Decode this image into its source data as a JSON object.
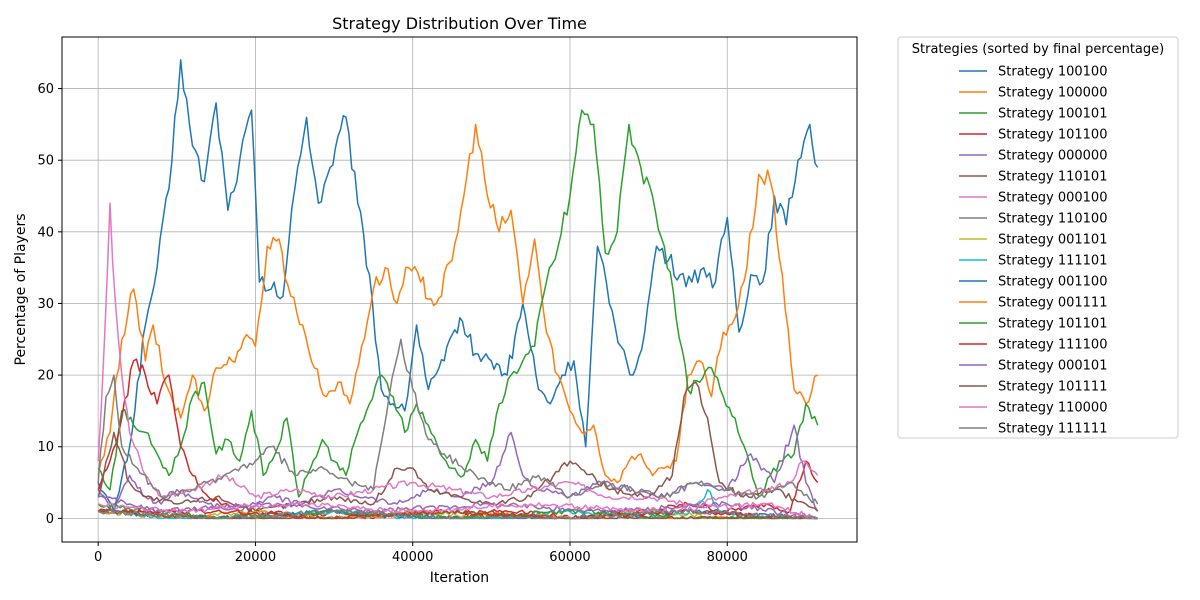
{
  "chart_data": {
    "type": "line",
    "title": "Strategy Distribution Over Time",
    "xlabel": "Iteration",
    "ylabel": "Percentage of Players",
    "xlim": [
      -4600,
      96500
    ],
    "ylim": [
      -3.3,
      67.2
    ],
    "xticks": [
      0,
      20000,
      40000,
      60000,
      80000
    ],
    "xtick_labels": [
      "0",
      "20000",
      "40000",
      "60000",
      "80000"
    ],
    "yticks": [
      0,
      10,
      20,
      30,
      40,
      50,
      60
    ],
    "ytick_labels": [
      "0",
      "10",
      "20",
      "30",
      "40",
      "50",
      "60"
    ],
    "grid": true,
    "legend": {
      "title": "Strategies (sorted by final percentage)",
      "placement": "outside-right"
    },
    "series": [
      {
        "name": "Strategy 100100",
        "color": "#1f77b4",
        "x": [
          0,
          2000,
          4000,
          6000,
          7500,
          9000,
          10500,
          12000,
          13500,
          15000,
          16500,
          18000,
          19500,
          20500,
          22000,
          23500,
          25000,
          26500,
          28000,
          29500,
          31500,
          33000,
          34500,
          36000,
          37500,
          39000,
          40500,
          42000,
          44000,
          46000,
          48000,
          50000,
          52000,
          54000,
          56000,
          57500,
          59000,
          60500,
          62000,
          63500,
          65000,
          66500,
          68000,
          69500,
          71000,
          72500,
          74000,
          75500,
          77000,
          78500,
          80000,
          81500,
          83000,
          84500,
          86000,
          87500,
          89000,
          90500,
          91500
        ],
        "y": [
          5,
          1,
          10,
          27,
          35,
          46,
          64,
          52,
          47,
          58,
          43,
          50,
          57,
          33,
          32,
          31,
          46,
          56,
          44,
          49,
          56,
          44,
          34,
          18,
          16,
          15,
          27,
          18,
          22,
          28,
          23,
          22,
          20,
          30,
          18,
          16,
          20,
          22,
          10,
          38,
          30,
          24,
          20,
          26,
          38,
          36,
          34,
          33,
          35,
          33,
          42,
          26,
          34,
          33,
          45,
          41,
          50,
          55,
          49
        ]
      },
      {
        "name": "Strategy 100000",
        "color": "#ff7f0e",
        "x": [
          0,
          1500,
          3000,
          4500,
          6000,
          7000,
          8500,
          10500,
          12000,
          13500,
          15000,
          17000,
          18500,
          20000,
          21500,
          23000,
          24500,
          26000,
          27500,
          29000,
          30500,
          32000,
          33500,
          35000,
          36500,
          38000,
          39500,
          41000,
          43000,
          45000,
          46500,
          48000,
          49500,
          51000,
          52500,
          54000,
          55500,
          57000,
          58500,
          60000,
          61500,
          63000,
          64500,
          66000,
          67500,
          69000,
          70500,
          72000,
          73500,
          75000,
          76500,
          78000,
          79500,
          81000,
          82500,
          84000,
          85500,
          87000,
          88500,
          90000,
          91500
        ],
        "y": [
          6,
          12,
          25,
          32,
          22,
          27,
          19,
          14,
          20,
          15,
          21,
          22,
          25,
          24,
          38,
          39,
          31,
          27,
          21,
          17,
          19,
          16,
          24,
          32,
          35,
          30,
          35,
          33,
          30,
          36,
          45,
          55,
          45,
          40,
          43,
          30,
          39,
          26,
          20,
          15,
          12,
          13,
          6,
          5,
          8,
          9,
          6,
          7,
          8,
          20,
          22,
          17,
          26,
          28,
          35,
          48,
          47,
          34,
          18,
          16,
          20
        ]
      },
      {
        "name": "Strategy 100101",
        "color": "#2ca02c",
        "x": [
          0,
          1500,
          3000,
          4500,
          6000,
          7500,
          9000,
          10500,
          12000,
          13500,
          15000,
          16500,
          18000,
          19500,
          21000,
          22500,
          24000,
          25500,
          27000,
          28500,
          30000,
          31500,
          33000,
          34500,
          36000,
          37500,
          39000,
          40500,
          42000,
          43500,
          45000,
          46500,
          48000,
          49500,
          51000,
          52500,
          54000,
          55500,
          57000,
          58500,
          60000,
          61500,
          63000,
          64500,
          66000,
          67500,
          69000,
          70500,
          72000,
          73500,
          75000,
          76500,
          78000,
          79500,
          81000,
          82500,
          84000,
          85500,
          87000,
          88500,
          90000,
          91500
        ],
        "y": [
          7,
          4,
          15,
          13,
          12,
          9,
          6,
          10,
          17,
          19,
          9,
          11,
          8,
          15,
          6,
          9,
          14,
          3,
          7,
          11,
          8,
          6,
          12,
          16,
          20,
          17,
          12,
          16,
          13,
          9,
          7,
          6,
          11,
          8,
          16,
          20,
          22,
          24,
          33,
          38,
          45,
          57,
          55,
          37,
          40,
          55,
          49,
          45,
          38,
          28,
          18,
          19,
          21,
          17,
          14,
          9,
          3,
          6,
          8,
          9,
          16,
          13
        ]
      },
      {
        "name": "Strategy 101100",
        "color": "#d62728",
        "x": [
          0,
          1500,
          3000,
          4500,
          6000,
          7500,
          9000,
          10500,
          12000,
          14000,
          16000,
          18000,
          20000,
          23000,
          26000,
          30000,
          35000,
          40000,
          45000,
          50000,
          55000,
          60000,
          65000,
          70000,
          75000,
          80000,
          85000,
          88000,
          90000,
          91500
        ],
        "y": [
          4,
          8,
          14,
          22,
          20,
          16,
          20,
          10,
          6,
          3,
          2,
          1,
          1,
          1,
          0,
          1,
          0,
          1,
          0,
          1,
          1,
          0,
          1,
          1,
          2,
          1,
          2,
          1,
          8,
          5
        ]
      },
      {
        "name": "Strategy 000000",
        "color": "#9467bd",
        "x": [
          0,
          2000,
          4000,
          6000,
          8000,
          10000,
          14000,
          18000,
          22000,
          26000,
          30000,
          34000,
          38000,
          42000,
          46000,
          50000,
          52500,
          54000,
          56000,
          60000,
          64000,
          68000,
          72000,
          76000,
          80000,
          83000,
          86000,
          88500,
          90000,
          91500
        ],
        "y": [
          4,
          1,
          6,
          3,
          2,
          4,
          2,
          1,
          3,
          2,
          4,
          3,
          2,
          4,
          3,
          5,
          12,
          6,
          4,
          3,
          5,
          4,
          3,
          5,
          4,
          9,
          5,
          13,
          5,
          1
        ]
      },
      {
        "name": "Strategy 110101",
        "color": "#8c564b",
        "x": [
          0,
          2000,
          4000,
          6000,
          10000,
          15000,
          20000,
          25000,
          30000,
          35000,
          38000,
          40000,
          42000,
          46000,
          50000,
          55000,
          60000,
          65000,
          70000,
          73000,
          74500,
          76000,
          77500,
          79000,
          82000,
          86000,
          90000,
          91500
        ],
        "y": [
          3,
          12,
          5,
          3,
          2,
          3,
          1,
          2,
          3,
          2,
          7,
          7,
          4,
          3,
          2,
          3,
          8,
          4,
          3,
          6,
          17,
          19,
          14,
          5,
          3,
          4,
          2,
          1
        ]
      },
      {
        "name": "Strategy 000100",
        "color": "#e377c2",
        "x": [
          0,
          800,
          1500,
          2200,
          3000,
          4000,
          6000,
          8000,
          12000,
          16000,
          20000,
          25000,
          30000,
          35000,
          40000,
          45000,
          50000,
          55000,
          60000,
          65000,
          70000,
          75000,
          80000,
          85000,
          88000,
          89500,
          91500
        ],
        "y": [
          8,
          25,
          44,
          30,
          20,
          12,
          6,
          3,
          4,
          6,
          3,
          4,
          3,
          4,
          5,
          4,
          3,
          4,
          5,
          3,
          3,
          2,
          3,
          4,
          5,
          8,
          6
        ]
      },
      {
        "name": "Strategy 110100",
        "color": "#7f7f7f",
        "x": [
          0,
          1000,
          2000,
          3000,
          5000,
          8000,
          12000,
          16000,
          20000,
          22000,
          25000,
          28000,
          32000,
          35000,
          37000,
          38500,
          40000,
          42000,
          44000,
          48000,
          52000,
          56000,
          60000,
          64000,
          68000,
          72000,
          76000,
          80000,
          84000,
          88000,
          91500
        ],
        "y": [
          5,
          17,
          20,
          10,
          7,
          3,
          4,
          6,
          8,
          10,
          6,
          7,
          5,
          4,
          17,
          25,
          18,
          11,
          9,
          6,
          4,
          6,
          3,
          5,
          4,
          3,
          5,
          4,
          3,
          5,
          2
        ]
      },
      {
        "name": "Strategy 001101",
        "color": "#bcbd22",
        "x": [
          0,
          10000,
          20000,
          30000,
          40000,
          50000,
          60000,
          70000,
          80000,
          91500
        ],
        "y": [
          1,
          0,
          1,
          0,
          1,
          0,
          0,
          1,
          0,
          0
        ]
      },
      {
        "name": "Strategy 111101",
        "color": "#17becf",
        "x": [
          0,
          10000,
          20000,
          30000,
          40000,
          50000,
          60000,
          70000,
          76000,
          77500,
          79000,
          85000,
          91500
        ],
        "y": [
          1,
          0,
          0,
          1,
          0,
          0,
          1,
          0,
          1,
          4,
          1,
          0,
          0
        ]
      },
      {
        "name": "Strategy 001100",
        "color": "#1f77b4",
        "x": [
          0,
          15000,
          30000,
          45000,
          60000,
          75000,
          91500
        ],
        "y": [
          1,
          0,
          1,
          0,
          0,
          1,
          0
        ]
      },
      {
        "name": "Strategy 001111",
        "color": "#ff7f0e",
        "x": [
          0,
          15000,
          30000,
          45000,
          60000,
          75000,
          91500
        ],
        "y": [
          1,
          0,
          0,
          1,
          0,
          0,
          0
        ]
      },
      {
        "name": "Strategy 101101",
        "color": "#2ca02c",
        "x": [
          0,
          15000,
          30000,
          45000,
          60000,
          75000,
          91500
        ],
        "y": [
          2,
          0,
          1,
          0,
          1,
          0,
          0
        ]
      },
      {
        "name": "Strategy 111100",
        "color": "#d62728",
        "x": [
          0,
          15000,
          30000,
          45000,
          60000,
          75000,
          91500
        ],
        "y": [
          1,
          1,
          0,
          1,
          0,
          1,
          0
        ]
      },
      {
        "name": "Strategy 000101",
        "color": "#9467bd",
        "x": [
          0,
          4000,
          8000,
          20000,
          35000,
          50000,
          65000,
          80000,
          91500
        ],
        "y": [
          3,
          2,
          1,
          2,
          1,
          2,
          1,
          2,
          0
        ]
      },
      {
        "name": "Strategy 101111",
        "color": "#8c564b",
        "x": [
          0,
          15000,
          30000,
          45000,
          60000,
          75000,
          91500
        ],
        "y": [
          1,
          0,
          0,
          1,
          0,
          0,
          0
        ]
      },
      {
        "name": "Strategy 110000",
        "color": "#e377c2",
        "x": [
          0,
          10000,
          25000,
          40000,
          55000,
          70000,
          85000,
          91500
        ],
        "y": [
          2,
          1,
          2,
          1,
          2,
          1,
          2,
          0
        ]
      },
      {
        "name": "Strategy 111111",
        "color": "#7f7f7f",
        "x": [
          0,
          15000,
          30000,
          45000,
          60000,
          75000,
          91500
        ],
        "y": [
          1,
          0,
          1,
          0,
          0,
          1,
          0
        ]
      }
    ]
  }
}
